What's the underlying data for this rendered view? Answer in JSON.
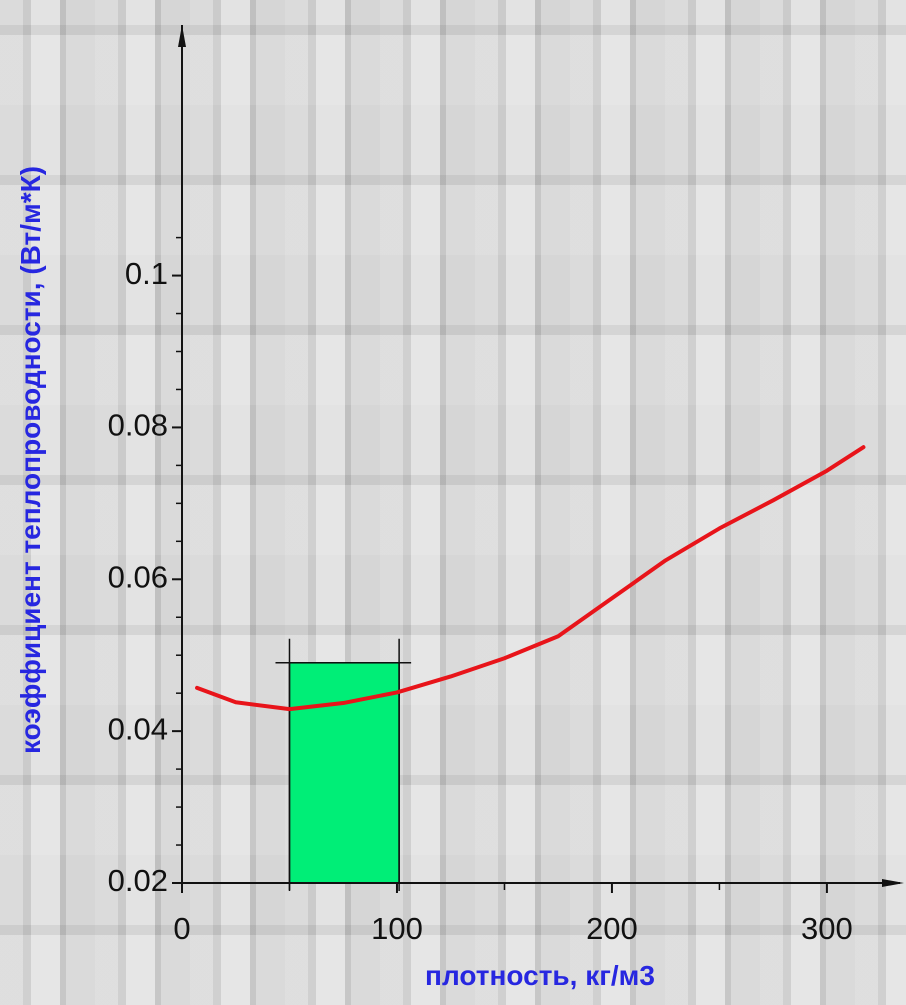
{
  "chart_data": {
    "type": "line",
    "x_label": "плотность, кг/м3",
    "y_label": "коэффициент теплопроводности, (Вт/м*К)",
    "xlim": [
      0,
      334
    ],
    "ylim": [
      0.02,
      0.133
    ],
    "xticks": [
      0,
      100,
      200,
      300
    ],
    "yticks": [
      0.02,
      0.04,
      0.06,
      0.08,
      0.1
    ],
    "xminorticks": [
      50,
      150,
      250
    ],
    "yminorticks": [
      0.025,
      0.03,
      0.035,
      0.045,
      0.05,
      0.055,
      0.065,
      0.07,
      0.075,
      0.085,
      0.09,
      0.095,
      0.105
    ],
    "series": [
      {
        "color": "#e8141a",
        "x": [
          7,
          25,
          50,
          75,
          100,
          125,
          150,
          175,
          200,
          225,
          250,
          275,
          300,
          317
        ],
        "values": [
          0.0457,
          0.0438,
          0.0429,
          0.0437,
          0.0451,
          0.0472,
          0.0496,
          0.0525,
          0.0575,
          0.0625,
          0.0667,
          0.0704,
          0.0743,
          0.0774
        ]
      }
    ],
    "highlight": {
      "x0": 50,
      "x1": 101,
      "top": 0.049,
      "color": "#00ee77"
    }
  }
}
